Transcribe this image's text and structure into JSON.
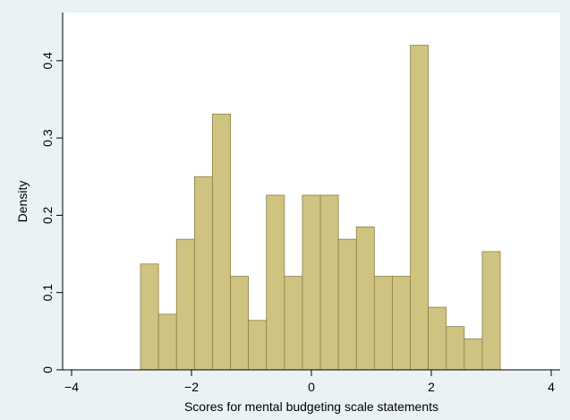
{
  "chart_data": {
    "type": "bar",
    "subtype": "histogram",
    "title": "",
    "xlabel": "Scores for mental budgeting scale statements",
    "ylabel": "Density",
    "xlim": [
      -4,
      4
    ],
    "ylim": [
      0,
      0.43
    ],
    "xticks": [
      -4,
      -2,
      0,
      2,
      4
    ],
    "xtick_labels": [
      "−4",
      "−2",
      "0",
      "2",
      "4"
    ],
    "yticks": [
      0,
      0.1,
      0.2,
      0.3,
      0.4
    ],
    "ytick_labels": [
      "0",
      "0.1",
      "0.2",
      "0.3",
      "0.4"
    ],
    "grid": false,
    "legend": "none",
    "bar_color": "#cfc382",
    "bar_edge_color": "#8f7f44",
    "background_color": "#eaf2f3",
    "plot_background_color": "#ffffff",
    "bin_width": 0.3,
    "bins": [
      {
        "x0": -2.85,
        "x1": -2.55,
        "density": 0.137
      },
      {
        "x0": -2.55,
        "x1": -2.25,
        "density": 0.072
      },
      {
        "x0": -2.25,
        "x1": -1.95,
        "density": 0.169
      },
      {
        "x0": -1.95,
        "x1": -1.65,
        "density": 0.25
      },
      {
        "x0": -1.65,
        "x1": -1.35,
        "density": 0.331
      },
      {
        "x0": -1.35,
        "x1": -1.05,
        "density": 0.121
      },
      {
        "x0": -1.05,
        "x1": -0.75,
        "density": 0.064
      },
      {
        "x0": -0.75,
        "x1": -0.45,
        "density": 0.226
      },
      {
        "x0": -0.45,
        "x1": -0.15,
        "density": 0.121
      },
      {
        "x0": -0.15,
        "x1": 0.15,
        "density": 0.226
      },
      {
        "x0": 0.15,
        "x1": 0.45,
        "density": 0.226
      },
      {
        "x0": 0.45,
        "x1": 0.75,
        "density": 0.169
      },
      {
        "x0": 0.75,
        "x1": 1.05,
        "density": 0.185
      },
      {
        "x0": 1.05,
        "x1": 1.35,
        "density": 0.121
      },
      {
        "x0": 1.35,
        "x1": 1.65,
        "density": 0.121
      },
      {
        "x0": 1.65,
        "x1": 1.95,
        "density": 0.42
      },
      {
        "x0": 1.95,
        "x1": 2.25,
        "density": 0.081
      },
      {
        "x0": 2.25,
        "x1": 2.55,
        "density": 0.056
      },
      {
        "x0": 2.55,
        "x1": 2.85,
        "density": 0.04
      },
      {
        "x0": 2.85,
        "x1": 3.15,
        "density": 0.153
      }
    ]
  }
}
